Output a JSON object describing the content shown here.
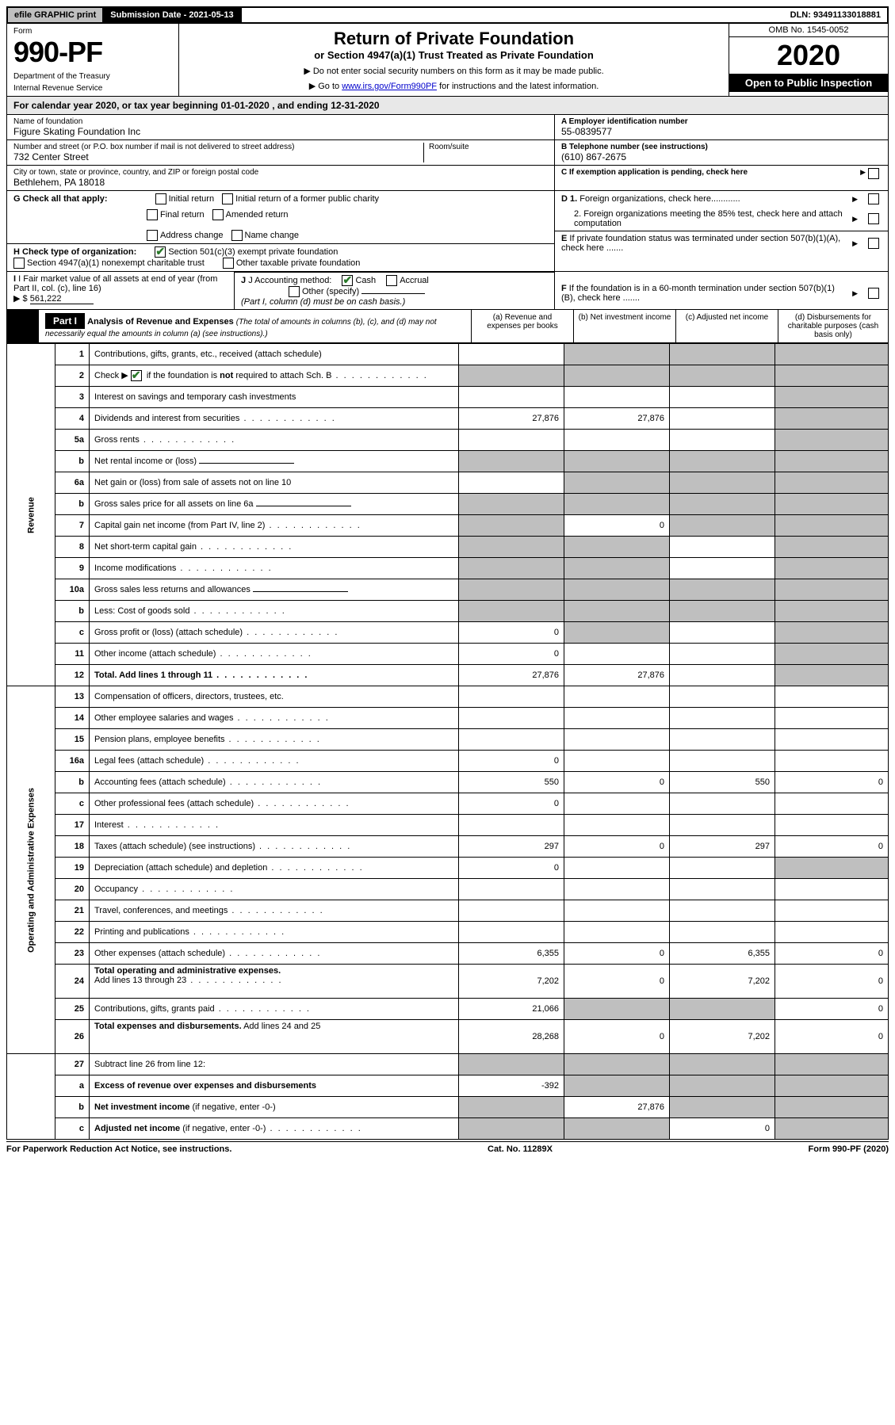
{
  "top": {
    "efile": "efile GRAPHIC print",
    "submission_label": "Submission Date - 2021-05-13",
    "dln_label": "DLN: 93491133018881"
  },
  "header": {
    "form_label": "Form",
    "form_number": "990-PF",
    "dept1": "Department of the Treasury",
    "dept2": "Internal Revenue Service",
    "title": "Return of Private Foundation",
    "subtitle": "or Section 4947(a)(1) Trust Treated as Private Foundation",
    "instr1": "▶ Do not enter social security numbers on this form as it may be made public.",
    "instr2_pre": "▶ Go to ",
    "instr2_link": "www.irs.gov/Form990PF",
    "instr2_post": " for instructions and the latest information.",
    "omb": "OMB No. 1545-0052",
    "year": "2020",
    "open": "Open to Public Inspection"
  },
  "calyear": {
    "text_pre": "For calendar year 2020, or tax year beginning ",
    "begin": "01-01-2020",
    "mid": " , and ending ",
    "end": "12-31-2020"
  },
  "entity": {
    "name_label": "Name of foundation",
    "name": "Figure Skating Foundation Inc",
    "addr_label": "Number and street (or P.O. box number if mail is not delivered to street address)",
    "addr": "732 Center Street",
    "room_label": "Room/suite",
    "city_label": "City or town, state or province, country, and ZIP or foreign postal code",
    "city": "Bethlehem, PA  18018",
    "a_label": "A Employer identification number",
    "a_val": "55-0839577",
    "b_label": "B Telephone number (see instructions)",
    "b_val": "(610) 867-2675",
    "c_label": "C If exemption application is pending, check here"
  },
  "g": {
    "label": "G Check all that apply:",
    "opts": [
      "Initial return",
      "Initial return of a former public charity",
      "Final return",
      "Amended return",
      "Address change",
      "Name change"
    ]
  },
  "h": {
    "label": "H Check type of organization:",
    "opt1": "Section 501(c)(3) exempt private foundation",
    "opt2": "Section 4947(a)(1) nonexempt charitable trust",
    "opt3": "Other taxable private foundation"
  },
  "i": {
    "label": "I Fair market value of all assets at end of year (from Part II, col. (c), line 16)",
    "val_prefix": "▶ $",
    "val": "561,222"
  },
  "j": {
    "label": "J Accounting method:",
    "cash": "Cash",
    "accrual": "Accrual",
    "other": "Other (specify)",
    "note": "(Part I, column (d) must be on cash basis.)"
  },
  "d_right": {
    "d1": "D 1. Foreign organizations, check here",
    "d2": "2. Foreign organizations meeting the 85% test, check here and attach computation",
    "e": "E  If private foundation status was terminated under section 507(b)(1)(A), check here",
    "f": "F  If the foundation is in a 60-month termination under section 507(b)(1)(B), check here"
  },
  "part1": {
    "tag": "Part I",
    "title": "Analysis of Revenue and Expenses",
    "title_note": "(The total of amounts in columns (b), (c), and (d) may not necessarily equal the amounts in column (a) (see instructions).)",
    "col_a": "(a) Revenue and expenses per books",
    "col_b": "(b) Net investment income",
    "col_c": "(c) Adjusted net income",
    "col_d": "(d) Disbursements for charitable purposes (cash basis only)"
  },
  "sections": {
    "revenue": "Revenue",
    "opex": "Operating and Administrative Expenses"
  },
  "rows": [
    {
      "n": "1",
      "d": "s",
      "a": "",
      "b": "s",
      "c": "s"
    },
    {
      "n": "2",
      "d": "s",
      "a": "s",
      "b": "s",
      "c": "s",
      "dots": true
    },
    {
      "n": "3",
      "d": "s",
      "a": "",
      "b": "",
      "c": ""
    },
    {
      "n": "4",
      "d": "s",
      "a": "27,876",
      "b": "27,876",
      "c": "",
      "dots": true
    },
    {
      "n": "5a",
      "d": "s",
      "a": "",
      "b": "",
      "c": "",
      "dots": true
    },
    {
      "n": "b",
      "d": "s",
      "a": "s",
      "b": "s",
      "c": "s",
      "inline": true
    },
    {
      "n": "6a",
      "d": "s",
      "a": "",
      "b": "s",
      "c": "s"
    },
    {
      "n": "b",
      "d": "s",
      "a": "s",
      "b": "s",
      "c": "s",
      "inline": true
    },
    {
      "n": "7",
      "d": "s",
      "a": "s",
      "b": "0",
      "c": "s",
      "dots": true
    },
    {
      "n": "8",
      "d": "s",
      "a": "s",
      "b": "s",
      "c": "",
      "dots": true
    },
    {
      "n": "9",
      "d": "s",
      "a": "s",
      "b": "s",
      "c": "",
      "dots": true
    },
    {
      "n": "10a",
      "d": "s",
      "a": "s",
      "b": "s",
      "c": "s",
      "inline": true
    },
    {
      "n": "b",
      "d": "s",
      "a": "s",
      "b": "s",
      "c": "s",
      "inline": true,
      "dots": true
    },
    {
      "n": "c",
      "d": "s",
      "a": "0",
      "b": "s",
      "c": "",
      "dots": true
    },
    {
      "n": "11",
      "d": "s",
      "a": "0",
      "b": "",
      "c": "",
      "dots": true
    },
    {
      "n": "12",
      "d": "s",
      "a": "27,876",
      "b": "27,876",
      "c": "",
      "bold": true,
      "dots": true
    }
  ],
  "rows_ex": [
    {
      "n": "13",
      "d": "",
      "a": "",
      "b": "",
      "c": ""
    },
    {
      "n": "14",
      "d": "",
      "a": "",
      "b": "",
      "c": "",
      "dots": true
    },
    {
      "n": "15",
      "d": "",
      "a": "",
      "b": "",
      "c": "",
      "dots": true
    },
    {
      "n": "16a",
      "d": "",
      "a": "0",
      "b": "",
      "c": "",
      "dots": true
    },
    {
      "n": "b",
      "d": "0",
      "a": "550",
      "b": "0",
      "c": "550",
      "dots": true
    },
    {
      "n": "c",
      "d": "",
      "a": "0",
      "b": "",
      "c": "",
      "dots": true
    },
    {
      "n": "17",
      "d": "",
      "a": "",
      "b": "",
      "c": "",
      "dots": true
    },
    {
      "n": "18",
      "d": "0",
      "a": "297",
      "b": "0",
      "c": "297",
      "dots": true
    },
    {
      "n": "19",
      "d": "s",
      "a": "0",
      "b": "",
      "c": "",
      "dots": true
    },
    {
      "n": "20",
      "d": "",
      "a": "",
      "b": "",
      "c": "",
      "dots": true
    },
    {
      "n": "21",
      "d": "",
      "a": "",
      "b": "",
      "c": "",
      "dots": true
    },
    {
      "n": "22",
      "d": "",
      "a": "",
      "b": "",
      "c": "",
      "dots": true
    },
    {
      "n": "23",
      "d": "0",
      "a": "6,355",
      "b": "0",
      "c": "6,355",
      "dots": true
    },
    {
      "n": "24",
      "d": "0",
      "a": "7,202",
      "b": "0",
      "c": "7,202",
      "bold": true,
      "dots": true,
      "tall": true
    },
    {
      "n": "25",
      "d": "0",
      "a": "21,066",
      "b": "s",
      "c": "s",
      "dots": true
    },
    {
      "n": "26",
      "d": "0",
      "a": "28,268",
      "b": "0",
      "c": "7,202",
      "bold": true,
      "tall": true
    }
  ],
  "rows_net": [
    {
      "n": "27",
      "d": "s",
      "a": "s",
      "b": "s",
      "c": "s"
    },
    {
      "n": "a",
      "d": "s",
      "a": "-392",
      "b": "s",
      "c": "s",
      "bold": true
    },
    {
      "n": "b",
      "d": "s",
      "a": "s",
      "b": "27,876",
      "c": "s",
      "bold": true
    },
    {
      "n": "c",
      "d": "s",
      "a": "s",
      "b": "s",
      "c": "0",
      "bold": true,
      "dots": true
    }
  ],
  "footer": {
    "left": "For Paperwork Reduction Act Notice, see instructions.",
    "mid": "Cat. No. 11289X",
    "right": "Form 990-PF (2020)"
  },
  "colors": {
    "shade": "#bfbfbf",
    "link": "#0000cc",
    "check": "#2a7a2a"
  }
}
